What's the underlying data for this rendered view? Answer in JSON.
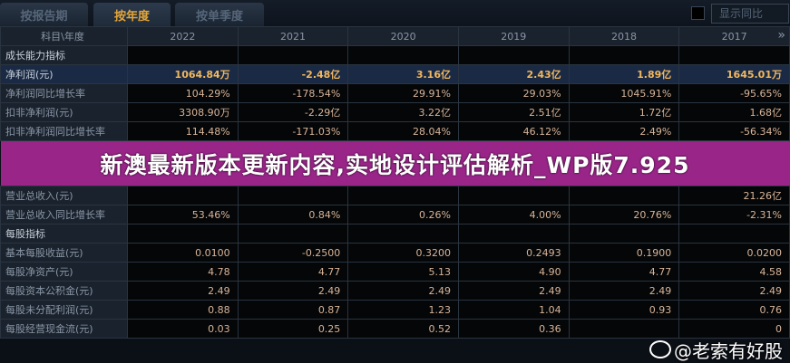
{
  "tabs": [
    {
      "label": "按报告期"
    },
    {
      "label": "按年度"
    },
    {
      "label": "按单季度"
    }
  ],
  "show_yoy": {
    "label": "显示同比",
    "checked": false
  },
  "header": {
    "label": "科目\\年度",
    "years": [
      "2022",
      "2021",
      "2020",
      "2019",
      "2018",
      "2017"
    ],
    "more": "»"
  },
  "rows": [
    {
      "label": "成长能力指标",
      "section": true,
      "values": [
        "",
        "",
        "",
        "",
        "",
        ""
      ]
    },
    {
      "label": "净利润(元)",
      "highlight": true,
      "values": [
        "1064.84万",
        "-2.48亿",
        "3.16亿",
        "2.43亿",
        "1.89亿",
        "1645.01万"
      ]
    },
    {
      "label": "净利润同比增长率",
      "values": [
        "104.29%",
        "-178.54%",
        "29.91%",
        "29.03%",
        "1045.91%",
        "-95.65%"
      ]
    },
    {
      "label": "扣非净利润(元)",
      "values": [
        "3308.90万",
        "-2.29亿",
        "3.22亿",
        "2.51亿",
        "1.72亿",
        "1.68亿"
      ]
    },
    {
      "label": "扣非净利润同比增长率",
      "values": [
        "114.48%",
        "-171.03%",
        "28.04%",
        "46.12%",
        "2.49%",
        "-56.34%"
      ]
    },
    {
      "label": "营业总收入(元)",
      "values": [
        "",
        "",
        "",
        "",
        "",
        "21.26亿"
      ]
    },
    {
      "label": "营业总收入同比增长率",
      "values": [
        "53.46%",
        "0.84%",
        "0.26%",
        "4.00%",
        "20.76%",
        "-2.31%"
      ]
    },
    {
      "label": "每股指标",
      "section": true,
      "values": [
        "",
        "",
        "",
        "",
        "",
        ""
      ]
    },
    {
      "label": "基本每股收益(元)",
      "values": [
        "0.0100",
        "-0.2500",
        "0.3200",
        "0.2493",
        "0.1900",
        "0.0200"
      ]
    },
    {
      "label": "每股净资产(元)",
      "values": [
        "4.78",
        "4.77",
        "5.13",
        "4.90",
        "4.77",
        "4.58"
      ]
    },
    {
      "label": "每股资本公积金(元)",
      "values": [
        "2.49",
        "2.49",
        "2.49",
        "2.49",
        "2.49",
        "2.49"
      ]
    },
    {
      "label": "每股未分配利润(元)",
      "values": [
        "0.88",
        "0.87",
        "1.23",
        "1.04",
        "0.93",
        "0.76"
      ]
    },
    {
      "label": "每股经营现金流(元)",
      "values": [
        "0.03",
        "0.25",
        "0.52",
        "0.36",
        "",
        "0"
      ]
    }
  ],
  "banner": "新澳最新版本更新内容,实地设计评估解析_WP版7.925",
  "watermark": "@老索有好股",
  "colors": {
    "banner": "#aa2896",
    "highlight_value": "#f0b860",
    "value": "#d8b59a",
    "active_tab": "#e2a53a"
  }
}
